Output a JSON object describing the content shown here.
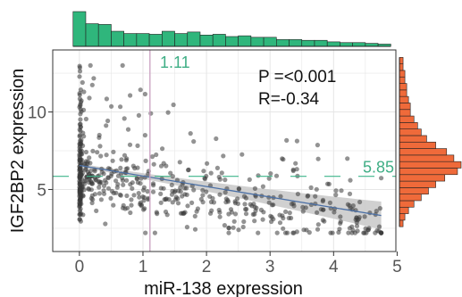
{
  "chart_data": {
    "type": "scatter",
    "xlabel": "miR-138 expression",
    "ylabel": "IGF2BP2 expression",
    "xlim": [
      -0.42,
      4.98
    ],
    "ylim": [
      1.0,
      14.0
    ],
    "x_ticks": [
      "0",
      "1",
      "2",
      "3",
      "4",
      "5"
    ],
    "x_tick_values": [
      0,
      1,
      2,
      3,
      4,
      5
    ],
    "y_ticks": [
      "5",
      "10"
    ],
    "y_tick_values": [
      5,
      10
    ],
    "grid": true,
    "annotations": {
      "p_text": "P =<0.001",
      "r_text": "R=-0.34",
      "x_median_label": "1.11",
      "x_median": 1.11,
      "y_median_label": "5.85",
      "y_median": 5.85
    },
    "regression": {
      "intercept": 6.55,
      "slope": -0.68,
      "x_range": [
        0,
        4.75
      ],
      "ci_halfwidth_start": 0.12,
      "ci_halfwidth_end": 0.9
    },
    "marginal_x": {
      "bin_width": 0.2,
      "bin_start": -0.1,
      "counts": [
        46,
        30,
        29,
        20,
        17,
        17,
        16,
        20,
        17,
        19,
        15,
        16,
        13,
        14,
        12,
        12,
        9,
        9,
        8,
        8,
        6,
        5,
        5,
        4,
        3
      ]
    },
    "marginal_y": {
      "bin_width": 0.42,
      "bin_start": 2.6,
      "counts": [
        2,
        3,
        5,
        8,
        12,
        16,
        20,
        25,
        32,
        34,
        30,
        26,
        20,
        15,
        12,
        10,
        8,
        6,
        6,
        5,
        4,
        4,
        3,
        3,
        2,
        2
      ]
    },
    "colors": {
      "points": "#3a3a3a",
      "regression_line": "#4a6fa5",
      "ci_band": "#c8c8c8",
      "top_hist": "#2fb67c",
      "right_hist": "#ef6a3a",
      "x_median_line": "#c9a0c0",
      "y_median_line": "#3fb58a",
      "median_text": "#3fae85",
      "grid": "#e6e6e6"
    }
  }
}
